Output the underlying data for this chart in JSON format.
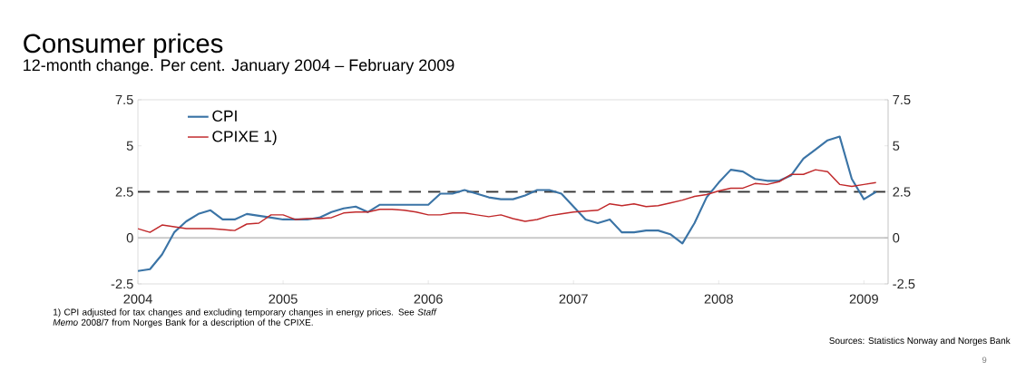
{
  "chart_data": {
    "type": "line",
    "title": "Consumer prices",
    "subtitle": "12-month change. Per cent. January 2004 – February 2009",
    "x": [
      "2004-01",
      "2004-02",
      "2004-03",
      "2004-04",
      "2004-05",
      "2004-06",
      "2004-07",
      "2004-08",
      "2004-09",
      "2004-10",
      "2004-11",
      "2004-12",
      "2005-01",
      "2005-02",
      "2005-03",
      "2005-04",
      "2005-05",
      "2005-06",
      "2005-07",
      "2005-08",
      "2005-09",
      "2005-10",
      "2005-11",
      "2005-12",
      "2006-01",
      "2006-02",
      "2006-03",
      "2006-04",
      "2006-05",
      "2006-06",
      "2006-07",
      "2006-08",
      "2006-09",
      "2006-10",
      "2006-11",
      "2006-12",
      "2007-01",
      "2007-02",
      "2007-03",
      "2007-04",
      "2007-05",
      "2007-06",
      "2007-07",
      "2007-08",
      "2007-09",
      "2007-10",
      "2007-11",
      "2007-12",
      "2008-01",
      "2008-02",
      "2008-03",
      "2008-04",
      "2008-05",
      "2008-06",
      "2008-07",
      "2008-08",
      "2008-09",
      "2008-10",
      "2008-11",
      "2008-12",
      "2009-01",
      "2009-02"
    ],
    "series": [
      {
        "name": "CPI",
        "color": "#3b74a6",
        "values": [
          -1.8,
          -1.7,
          -0.9,
          0.3,
          0.9,
          1.3,
          1.5,
          1.0,
          1.0,
          1.3,
          1.2,
          1.1,
          1.0,
          1.0,
          1.0,
          1.1,
          1.4,
          1.6,
          1.7,
          1.4,
          1.8,
          1.8,
          1.8,
          1.8,
          1.8,
          2.4,
          2.4,
          2.6,
          2.4,
          2.2,
          2.1,
          2.1,
          2.3,
          2.6,
          2.6,
          2.4,
          1.7,
          1.0,
          0.8,
          1.0,
          0.3,
          0.3,
          0.4,
          0.4,
          0.2,
          -0.3,
          0.8,
          2.2,
          3.0,
          3.7,
          3.6,
          3.2,
          3.1,
          3.1,
          3.4,
          4.3,
          4.8,
          5.3,
          5.5,
          3.2,
          2.1,
          2.5
        ]
      },
      {
        "name": "CPIXE 1)",
        "color": "#c0282a",
        "values": [
          0.5,
          0.3,
          0.7,
          0.6,
          0.5,
          0.5,
          0.5,
          0.45,
          0.4,
          0.75,
          0.8,
          1.25,
          1.25,
          1.0,
          1.05,
          1.05,
          1.1,
          1.35,
          1.4,
          1.4,
          1.55,
          1.55,
          1.5,
          1.4,
          1.25,
          1.25,
          1.35,
          1.35,
          1.25,
          1.15,
          1.25,
          1.05,
          0.9,
          1.0,
          1.2,
          1.3,
          1.4,
          1.45,
          1.5,
          1.85,
          1.75,
          1.85,
          1.7,
          1.75,
          1.9,
          2.05,
          2.25,
          2.35,
          2.55,
          2.7,
          2.7,
          2.95,
          2.9,
          3.05,
          3.45,
          3.45,
          3.7,
          3.6,
          2.9,
          2.8,
          2.9,
          3.0
        ]
      }
    ],
    "xlim": [
      "2004-01",
      "2009-03"
    ],
    "xticks": [
      {
        "value": "2004-01",
        "label": "2004"
      },
      {
        "value": "2005-01",
        "label": "2005"
      },
      {
        "value": "2006-01",
        "label": "2006"
      },
      {
        "value": "2007-01",
        "label": "2007"
      },
      {
        "value": "2008-01",
        "label": "2008"
      },
      {
        "value": "2009-01",
        "label": "2009"
      }
    ],
    "ylim": [
      -2.5,
      7.5
    ],
    "yticks": [
      -2.5,
      0,
      2.5,
      5,
      7.5
    ],
    "y2lim": [
      -2.5,
      7.5
    ],
    "y2ticks": [
      -2.5,
      0,
      2.5,
      5,
      7.5
    ],
    "ref_lines": [
      {
        "axis": "y",
        "value": 2.5,
        "line_style": "dashed",
        "color": "#333333"
      },
      {
        "axis": "y",
        "value": 0,
        "color": "#c8c8c8"
      }
    ],
    "legend": "top left",
    "annotations": [
      "1) CPI adjusted for tax changes and excluding temporary changes in energy prices. See *Staff Memo* 2008/7 from Norges Bank for a description of the CPIXE.",
      "Sources: Statistics Norway and Norges Bank",
      "9"
    ]
  }
}
